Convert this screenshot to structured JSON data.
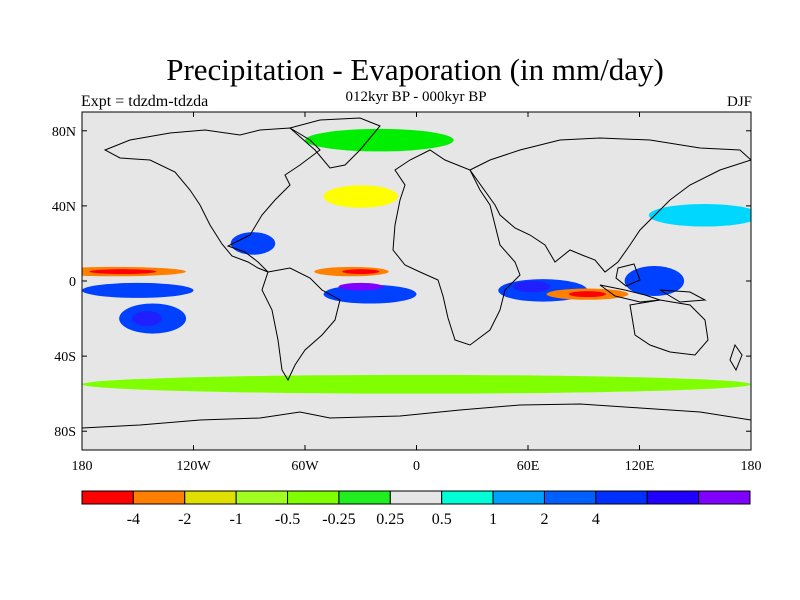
{
  "title": "Precipitation - Evaporation (in mm/day)",
  "subtitle": "012kyr BP - 000kyr BP",
  "left_string": "Expt = tdzdm-tdzda",
  "right_string": "DJF",
  "map": {
    "projection": "cylindrical equidistant",
    "lon_range": [
      -180,
      180
    ],
    "lat_range": [
      -90,
      90
    ],
    "background_color": "#e6e6e6",
    "lat_ticks": [
      {
        "value": 80,
        "label": "80N"
      },
      {
        "value": 40,
        "label": "40N"
      },
      {
        "value": 0,
        "label": "0"
      },
      {
        "value": -40,
        "label": "40S"
      },
      {
        "value": -80,
        "label": "80S"
      }
    ],
    "lon_ticks": [
      {
        "value": -180,
        "label": "180"
      },
      {
        "value": -120,
        "label": "120W"
      },
      {
        "value": -60,
        "label": "60W"
      },
      {
        "value": 0,
        "label": "0"
      },
      {
        "value": 60,
        "label": "60E"
      },
      {
        "value": 120,
        "label": "120E"
      },
      {
        "value": 180,
        "label": "180"
      }
    ],
    "features": [
      {
        "name": "pacific-itcz-dry-band",
        "color": "#ff8000",
        "lon": -162,
        "lat": 5,
        "rlon": 38,
        "rlat": 2.5
      },
      {
        "name": "pacific-itcz-dry-core",
        "color": "#ff0000",
        "lon": -158,
        "lat": 5,
        "rlon": 18,
        "rlat": 1.3
      },
      {
        "name": "pacific-wet-band-south",
        "color": "#0040ff",
        "lon": -150,
        "lat": -5,
        "rlon": 30,
        "rlat": 4
      },
      {
        "name": "pacific-spcz-wet",
        "color": "#0040ff",
        "lon": -142,
        "lat": -20,
        "rlon": 18,
        "rlat": 8
      },
      {
        "name": "pacific-spcz-wet-core",
        "color": "#2020ff",
        "lon": -145,
        "lat": -20,
        "rlon": 8,
        "rlat": 4
      },
      {
        "name": "atlantic-dry-band",
        "color": "#ff8000",
        "lon": -35,
        "lat": 5,
        "rlon": 20,
        "rlat": 2.5
      },
      {
        "name": "atlantic-dry-core",
        "color": "#ff0000",
        "lon": -30,
        "lat": 5,
        "rlon": 10,
        "rlat": 1.3
      },
      {
        "name": "south-atlantic-wet",
        "color": "#0040ff",
        "lon": -25,
        "lat": -7,
        "rlon": 25,
        "rlat": 5
      },
      {
        "name": "south-atlantic-wet-core",
        "color": "#8000ff",
        "lon": -30,
        "lat": -3,
        "rlon": 12,
        "rlat": 2
      },
      {
        "name": "indian-ocean-wet",
        "color": "#0040ff",
        "lon": 68,
        "lat": -5,
        "rlon": 24,
        "rlat": 6
      },
      {
        "name": "indian-ocean-wet-core",
        "color": "#2020ff",
        "lon": 62,
        "lat": -3,
        "rlon": 10,
        "rlat": 3
      },
      {
        "name": "indian-ocean-dry-band",
        "color": "#ff8000",
        "lon": 92,
        "lat": -7,
        "rlon": 22,
        "rlat": 3
      },
      {
        "name": "indian-ocean-dry-core",
        "color": "#ff0000",
        "lon": 92,
        "lat": -7,
        "rlon": 10,
        "rlat": 1.6
      },
      {
        "name": "maritime-continent-wet",
        "color": "#0040ff",
        "lon": 128,
        "lat": 0,
        "rlon": 16,
        "rlat": 8
      },
      {
        "name": "north-atlantic-storm-track",
        "color": "#ffff00",
        "lon": -30,
        "lat": 45,
        "rlon": 20,
        "rlat": 6
      },
      {
        "name": "north-pacific-storm-track",
        "color": "#00d7ff",
        "lon": 155,
        "lat": 35,
        "rlon": 30,
        "rlat": 6
      },
      {
        "name": "southern-ocean-green",
        "color": "#80ff00",
        "lon": 0,
        "lat": -55,
        "rlon": 180,
        "rlat": 5
      },
      {
        "name": "arctic-green",
        "color": "#00ee00",
        "lon": -20,
        "lat": 75,
        "rlon": 40,
        "rlat": 6
      },
      {
        "name": "central-america-wet",
        "color": "#0040ff",
        "lon": -88,
        "lat": 20,
        "rlon": 12,
        "rlat": 6
      }
    ]
  },
  "colorbar": {
    "colors": [
      "#ff0000",
      "#ff8000",
      "#e0e000",
      "#a0ff20",
      "#80ff00",
      "#20ee20",
      "#e6e6e6",
      "#00ffd7",
      "#00a0ff",
      "#0060ff",
      "#0030ff",
      "#2000ff",
      "#8000ff"
    ],
    "labels": [
      "-4",
      "-2",
      "-1",
      "-0.5",
      "-0.25",
      "0.25",
      "0.5",
      "1",
      "2",
      "4"
    ],
    "label_box_index": [
      1,
      2,
      3,
      4,
      5,
      6,
      7,
      8,
      9,
      10
    ]
  }
}
